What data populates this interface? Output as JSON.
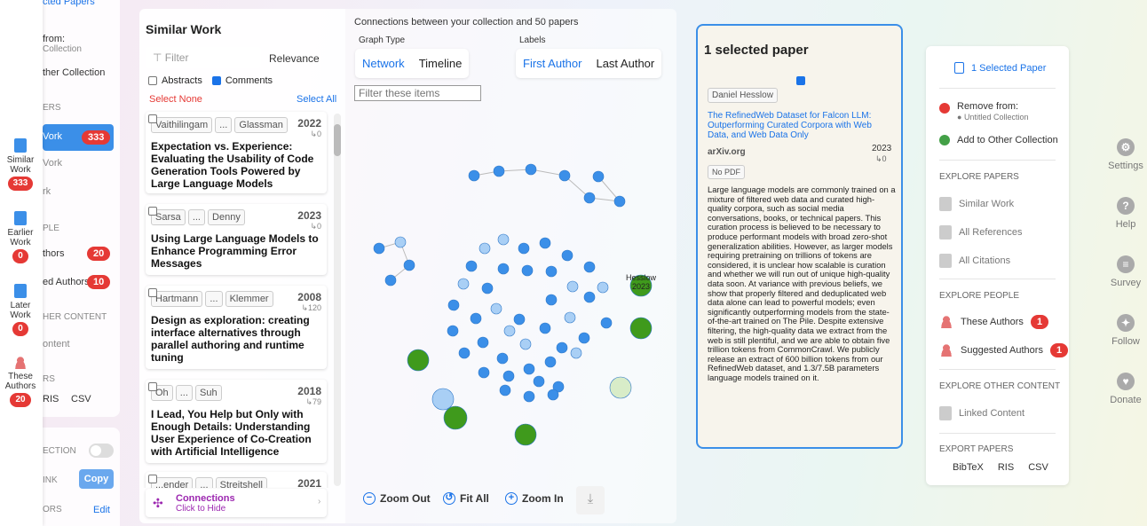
{
  "back_sidebar": {
    "items": [
      {
        "text": "cted Papers",
        "muted": false
      },
      {
        "text": "from:",
        "muted": false
      },
      {
        "text": "Collection",
        "muted": true
      },
      {
        "text": "ther Collection",
        "muted": false
      },
      {
        "text": "ERS",
        "muted": true
      },
      {
        "text": "Vork",
        "muted": false
      },
      {
        "text": "Vork",
        "muted": true
      },
      {
        "text": "rk",
        "muted": true
      },
      {
        "text": "PLE",
        "muted": true
      },
      {
        "text": "thors",
        "muted": false
      },
      {
        "text": "ed Authors",
        "muted": false
      },
      {
        "text": "HER CONTENT",
        "muted": true
      },
      {
        "text": "ontent",
        "muted": true
      },
      {
        "text": "RS",
        "muted": true
      },
      {
        "text": "RIS",
        "muted": false
      },
      {
        "text": "CSV",
        "muted": false
      },
      {
        "text": "ECTION",
        "muted": true
      },
      {
        "text": "INK",
        "muted": true
      },
      {
        "text": "Copy",
        "muted": false
      },
      {
        "text": "ORS",
        "muted": true
      },
      {
        "text": "Edit",
        "muted": false
      }
    ],
    "badges": [
      "333",
      "20",
      "10"
    ]
  },
  "rail": [
    {
      "label": "Similar Work",
      "count": "333"
    },
    {
      "label": "Earlier Work",
      "count": "0"
    },
    {
      "label": "Later Work",
      "count": "0"
    },
    {
      "label": "These Authors",
      "count": "20"
    }
  ],
  "similar": {
    "title": "Similar Work",
    "filter_placeholder": "Filter",
    "sort": "Relevance",
    "abstracts_label": "Abstracts",
    "comments_label": "Comments",
    "select_none": "Select None",
    "select_all": "Select All",
    "papers": [
      {
        "a1": "Vaithilingam",
        "dots": "...",
        "a2": "Glassman",
        "year": "2022",
        "cites": "↳0",
        "title": "Expectation vs. Experience: Evaluating the Usability of Code Generation Tools Powered by Large Language Models"
      },
      {
        "a1": "Sarsa",
        "dots": "...",
        "a2": "Denny",
        "year": "2023",
        "cites": "↳0",
        "title": "Using Large Language Models to Enhance Programming Error Messages"
      },
      {
        "a1": "Hartmann",
        "dots": "...",
        "a2": "Klemmer",
        "year": "2008",
        "cites": "↳120",
        "title": "Design as exploration: creating interface alternatives through parallel authoring and runtime tuning"
      },
      {
        "a1": "Oh",
        "dots": "...",
        "a2": "Suh",
        "year": "2018",
        "cites": "↳79",
        "title": "I Lead, You Help but Only with Enough Details: Understanding User Experience of Co-Creation with Artificial Intelligence"
      },
      {
        "a1": "...ender",
        "dots": "...",
        "a2": "Streitshell",
        "year": "2021",
        "cites": "",
        "title": ""
      }
    ],
    "connections_label": "Connections",
    "connections_sub": "Click to Hide"
  },
  "graph": {
    "header": "Connections between your collection and 50 papers",
    "graph_type_label": "Graph Type",
    "labels_label": "Labels",
    "graph_types": [
      "Network",
      "Timeline"
    ],
    "label_types": [
      "First Author",
      "Last Author"
    ],
    "filter_placeholder": "Filter these items",
    "node_label_name": "Hesslow",
    "node_label_year": "2023",
    "zoom_out": "Zoom Out",
    "fit_all": "Fit All",
    "zoom_in": "Zoom In"
  },
  "selected": {
    "title": "1 selected paper",
    "author": "Daniel Hesslow",
    "paper_title": "The RefinedWeb Dataset for Falcon LLM: Outperforming Curated Corpora with Web Data, and Web Data Only",
    "venue": "arXiv.org",
    "year": "2023",
    "cites": "↳0",
    "pdf": "No PDF",
    "abstract": "Large language models are commonly trained on a mixture of filtered web data and curated high-quality corpora, such as social media conversations, books, or technical papers. This curation process is believed to be necessary to produce performant models with broad zero-shot generalization abilities. However, as larger models requiring pretraining on trillions of tokens are considered, it is unclear how scalable is curation and whether we will run out of unique high-quality data soon. At variance with previous beliefs, we show that properly filtered and deduplicated web data alone can lead to powerful models; even significantly outperforming models from the state-of-the-art trained on The Pile. Despite extensive filtering, the high-quality data we extract from the web is still plentiful, and we are able to obtain five trillion tokens from CommonCrawl. We publicly release an extract of 600 billion tokens from our RefinedWeb dataset, and 1.3/7.5B parameters language models trained on it."
  },
  "right": {
    "selected_label": "1 Selected Paper",
    "remove_label": "Remove from:",
    "remove_sub": "Untitled Collection",
    "add_label": "Add to Other Collection",
    "explore_papers": "EXPLORE PAPERS",
    "similar": "Similar Work",
    "refs": "All References",
    "cites": "All Citations",
    "explore_people": "EXPLORE PEOPLE",
    "these_authors": "These Authors",
    "these_count": "1",
    "suggested": "Suggested Authors",
    "suggested_count": "1",
    "explore_other": "EXPLORE OTHER CONTENT",
    "linked": "Linked Content",
    "export": "EXPORT PAPERS",
    "bibtex": "BibTeX",
    "ris": "RIS",
    "csv": "CSV"
  },
  "far_right": [
    "Settings",
    "Help",
    "Survey",
    "Follow",
    "Donate"
  ],
  "colors": {
    "accent": "#1a73e8",
    "node_blue": "#3b8fe8",
    "node_green": "#3f9a1c",
    "badge_red": "#e53935"
  }
}
